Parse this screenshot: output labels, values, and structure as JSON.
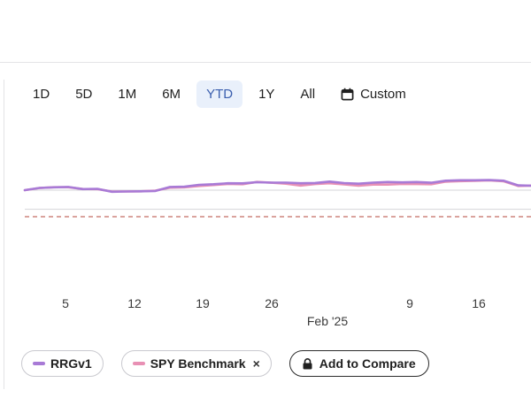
{
  "range_options": [
    "1D",
    "5D",
    "1M",
    "6M",
    "YTD",
    "1Y",
    "All"
  ],
  "active_range": "YTD",
  "custom_label": "Custom",
  "chart_data": {
    "type": "line",
    "x_tick_labels": [
      "5",
      "12",
      "19",
      "26",
      "9",
      "16"
    ],
    "month_label": "Feb '25",
    "series": [
      {
        "name": "RRGv1",
        "color": "#a87ad6",
        "values": [
          0.0,
          0.85,
          1.05,
          1.2,
          0.4,
          0.5,
          -0.6,
          -0.5,
          -0.45,
          -0.3,
          1.2,
          1.3,
          2.0,
          2.25,
          2.6,
          2.55,
          3.0,
          2.85,
          2.85,
          2.6,
          2.7,
          3.25,
          2.65,
          2.45,
          2.85,
          3.05,
          2.95,
          3.05,
          2.8,
          3.55,
          3.75,
          3.75,
          3.8,
          3.55,
          1.8,
          1.65
        ]
      },
      {
        "name": "SPY Benchmark",
        "color": "#e890b4",
        "values": [
          0.0,
          0.8,
          1.1,
          1.1,
          0.45,
          0.4,
          -0.5,
          -0.5,
          -0.45,
          -0.15,
          0.95,
          1.05,
          1.55,
          1.95,
          2.35,
          2.25,
          3.1,
          2.8,
          2.45,
          1.75,
          2.3,
          2.6,
          2.2,
          1.65,
          2.1,
          2.1,
          2.35,
          2.3,
          2.25,
          3.2,
          3.4,
          3.5,
          3.65,
          3.35,
          1.55,
          1.75
        ]
      }
    ],
    "reference_lines": [
      {
        "value": 0,
        "style": "solid"
      },
      {
        "value": -7.2,
        "style": "solid"
      },
      {
        "value": -10.0,
        "style": "dashed",
        "color": "#b5473b"
      }
    ],
    "ylim": [
      -12,
      8
    ],
    "grid": false,
    "legend": "bottom"
  },
  "legend": {
    "series_a": "RRGv1",
    "series_b": "SPY Benchmark",
    "remove_icon": "×",
    "compare_label": "Add to Compare"
  }
}
